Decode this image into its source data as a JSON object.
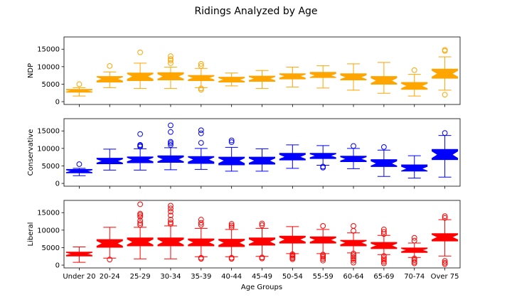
{
  "chart_data": {
    "type": "box",
    "title": "Ridings Analyzed by Age",
    "xlabel": "Age Groups",
    "categories": [
      "Under 20",
      "20-24",
      "25-29",
      "30-34",
      "35-39",
      "40-44",
      "45-49",
      "50-54",
      "55-59",
      "60-64",
      "65-69",
      "70-74",
      "Over 75"
    ],
    "ylim": [
      -800,
      18500
    ],
    "yticks": [
      0,
      5000,
      10000,
      15000
    ],
    "grid": false,
    "notched": true,
    "panels": [
      {
        "ylabel": "NDP",
        "color": "#ffa500",
        "boxes": [
          {
            "whislo": 1600,
            "q1": 2700,
            "med": 3100,
            "q3": 3500,
            "whishi": 4000,
            "fliers": [
              5000
            ]
          },
          {
            "whislo": 4000,
            "q1": 5600,
            "med": 6500,
            "q3": 7200,
            "whishi": 8500,
            "fliers": [
              10200
            ]
          },
          {
            "whislo": 3800,
            "q1": 6000,
            "med": 7200,
            "q3": 8200,
            "whishi": 11000,
            "fliers": [
              14100
            ]
          },
          {
            "whislo": 3800,
            "q1": 6200,
            "med": 7200,
            "q3": 8300,
            "whishi": 9900,
            "fliers": [
              11000,
              11800,
              12200,
              13000
            ]
          },
          {
            "whislo": 4000,
            "q1": 6000,
            "med": 6800,
            "q3": 7500,
            "whishi": 9500,
            "fliers": [
              3400,
              3800,
              10200,
              10800
            ]
          },
          {
            "whislo": 4500,
            "q1": 5600,
            "med": 6300,
            "q3": 7000,
            "whishi": 8200,
            "fliers": []
          },
          {
            "whislo": 3800,
            "q1": 5800,
            "med": 6600,
            "q3": 7300,
            "whishi": 8900,
            "fliers": []
          },
          {
            "whislo": 4200,
            "q1": 6500,
            "med": 7300,
            "q3": 8000,
            "whishi": 9900,
            "fliers": []
          },
          {
            "whislo": 3900,
            "q1": 6900,
            "med": 7500,
            "q3": 8400,
            "whishi": 10300,
            "fliers": []
          },
          {
            "whislo": 3300,
            "q1": 6200,
            "med": 7000,
            "q3": 8000,
            "whishi": 10800,
            "fliers": []
          },
          {
            "whislo": 2400,
            "q1": 5000,
            "med": 6000,
            "q3": 7200,
            "whishi": 11200,
            "fliers": []
          },
          {
            "whislo": 1600,
            "q1": 3500,
            "med": 4500,
            "q3": 5500,
            "whishi": 7800,
            "fliers": [
              9000
            ]
          },
          {
            "whislo": 3300,
            "q1": 6700,
            "med": 8000,
            "q3": 9300,
            "whishi": 12800,
            "fliers": [
              2000,
              14500,
              14800
            ]
          }
        ]
      },
      {
        "ylabel": "Conservative",
        "color": "#0000ff",
        "boxes": [
          {
            "whislo": 2200,
            "q1": 3000,
            "med": 3500,
            "q3": 4000,
            "whishi": 4300,
            "fliers": [
              5500
            ]
          },
          {
            "whislo": 3800,
            "q1": 5600,
            "med": 6400,
            "q3": 7200,
            "whishi": 9800,
            "fliers": []
          },
          {
            "whislo": 3800,
            "q1": 5900,
            "med": 6800,
            "q3": 7600,
            "whishi": 9900,
            "fliers": [
              10500,
              10800,
              11000,
              14100
            ]
          },
          {
            "whislo": 3900,
            "q1": 6000,
            "med": 6900,
            "q3": 7900,
            "whishi": 10200,
            "fliers": [
              11000,
              11500,
              11900,
              14700,
              16600
            ]
          },
          {
            "whislo": 4000,
            "q1": 5700,
            "med": 6800,
            "q3": 7700,
            "whishi": 10000,
            "fliers": [
              11600,
              14300,
              15200
            ]
          },
          {
            "whislo": 3500,
            "q1": 5300,
            "med": 6500,
            "q3": 7500,
            "whishi": 10300,
            "fliers": [
              11800,
              12300
            ]
          },
          {
            "whislo": 3500,
            "q1": 5500,
            "med": 6500,
            "q3": 7500,
            "whishi": 9900,
            "fliers": []
          },
          {
            "whislo": 4300,
            "q1": 6700,
            "med": 7600,
            "q3": 8600,
            "whishi": 11000,
            "fliers": []
          },
          {
            "whislo": 5200,
            "q1": 7100,
            "med": 7900,
            "q3": 8600,
            "whishi": 10800,
            "fliers": [
              4500,
              4800
            ]
          },
          {
            "whislo": 4200,
            "q1": 6200,
            "med": 7000,
            "q3": 7800,
            "whishi": 10000,
            "fliers": [
              10700
            ]
          },
          {
            "whislo": 2000,
            "q1": 4800,
            "med": 5700,
            "q3": 6800,
            "whishi": 9500,
            "fliers": [
              10400
            ]
          },
          {
            "whislo": 1500,
            "q1": 3500,
            "med": 4200,
            "q3": 5300,
            "whishi": 7900,
            "fliers": []
          },
          {
            "whislo": 1800,
            "q1": 6800,
            "med": 8200,
            "q3": 9700,
            "whishi": 13700,
            "fliers": [
              14400
            ]
          }
        ]
      },
      {
        "ylabel": "Liberal",
        "color": "#ff0000",
        "boxes": [
          {
            "whislo": 800,
            "q1": 2600,
            "med": 3200,
            "q3": 3700,
            "whishi": 5200,
            "fliers": []
          },
          {
            "whislo": 2000,
            "q1": 5100,
            "med": 6200,
            "q3": 7300,
            "whishi": 10800,
            "fliers": [
              1600
            ]
          },
          {
            "whislo": 1800,
            "q1": 5500,
            "med": 6600,
            "q3": 7800,
            "whishi": 10800,
            "fliers": [
              11500,
              12000,
              12700,
              13800,
              14300,
              14700,
              17400
            ]
          },
          {
            "whislo": 1800,
            "q1": 5500,
            "med": 6600,
            "q3": 7800,
            "whishi": 11200,
            "fliers": [
              11800,
              12200,
              13000,
              14200,
              15300,
              16200,
              17000
            ]
          },
          {
            "whislo": 2400,
            "q1": 5500,
            "med": 6500,
            "q3": 7500,
            "whishi": 10500,
            "fliers": [
              1800,
              2100,
              11500,
              12100,
              13000
            ]
          },
          {
            "whislo": 2400,
            "q1": 5300,
            "med": 6400,
            "q3": 7400,
            "whishi": 10200,
            "fliers": [
              1800,
              2100,
              10800,
              11300,
              11800
            ]
          },
          {
            "whislo": 2500,
            "q1": 5700,
            "med": 6700,
            "q3": 7800,
            "whishi": 10500,
            "fliers": [
              1900,
              2200,
              11400,
              11900
            ]
          },
          {
            "whislo": 3300,
            "q1": 6300,
            "med": 7300,
            "q3": 8300,
            "whishi": 11000,
            "fliers": [
              1700,
              2000,
              2400,
              2800,
              3100
            ]
          },
          {
            "whislo": 3300,
            "q1": 6300,
            "med": 7200,
            "q3": 8100,
            "whishi": 10200,
            "fliers": [
              1300,
              1800,
              2300,
              2700,
              3000,
              11200
            ]
          },
          {
            "whislo": 3500,
            "q1": 5500,
            "med": 6400,
            "q3": 7100,
            "whishi": 9200,
            "fliers": [
              700,
              1300,
              1800,
              2300,
              2800,
              3300,
              9800,
              11200
            ]
          },
          {
            "whislo": 3000,
            "q1": 4700,
            "med": 5600,
            "q3": 6500,
            "whishi": 8500,
            "fliers": [
              500,
              1000,
              1500,
              2000,
              2600,
              8900,
              9500,
              10200
            ]
          },
          {
            "whislo": 2200,
            "q1": 3600,
            "med": 4300,
            "q3": 4900,
            "whishi": 6300,
            "fliers": [
              500,
              900,
              1400,
              1900,
              7000,
              7800
            ]
          },
          {
            "whislo": 2600,
            "q1": 6900,
            "med": 8000,
            "q3": 9000,
            "whishi": 13000,
            "fliers": [
              300,
              700,
              1200,
              13500,
              14000
            ]
          }
        ]
      }
    ]
  }
}
